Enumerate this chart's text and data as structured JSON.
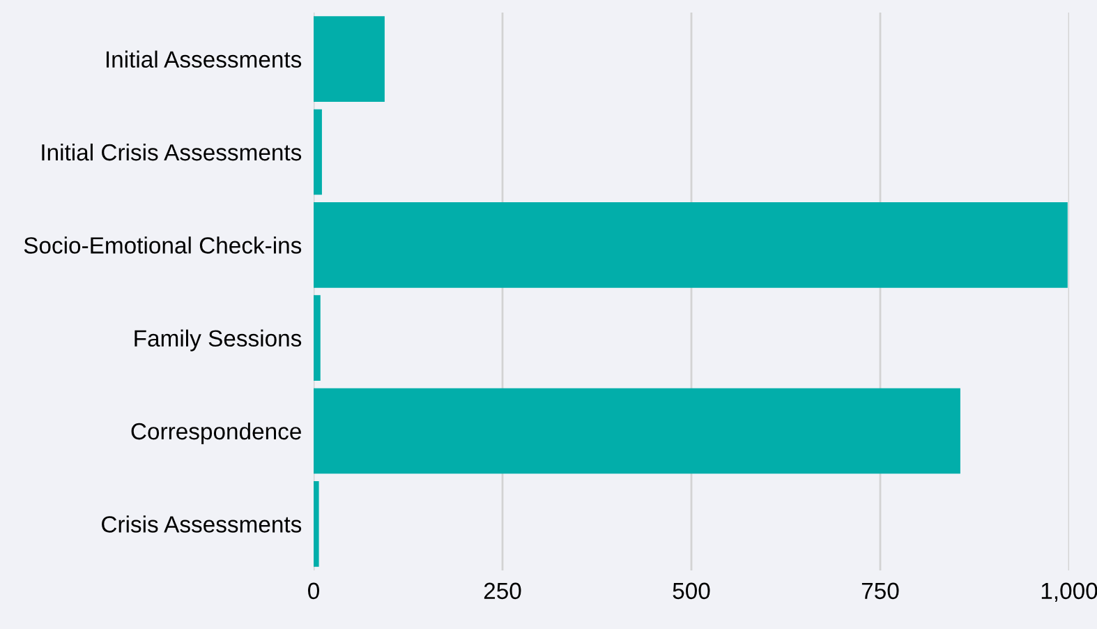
{
  "chart_data": {
    "type": "bar",
    "orientation": "horizontal",
    "categories": [
      "Initial Assessments",
      "Initial Crisis Assessments",
      "Socio-Emotional Check-ins",
      "Family Sessions",
      "Correspondence",
      "Crisis Assessments"
    ],
    "values": [
      94,
      11,
      998,
      9,
      856,
      7
    ],
    "color": "#02aeaa",
    "xlim": [
      0,
      1000
    ],
    "xticks": [
      0,
      {
        "value": 250,
        "label": "250"
      },
      {
        "value": 500,
        "label": "500"
      },
      {
        "value": 750,
        "label": "750"
      },
      {
        "value": 1000,
        "label": "1,000"
      }
    ],
    "grid": "x",
    "legend": false
  }
}
